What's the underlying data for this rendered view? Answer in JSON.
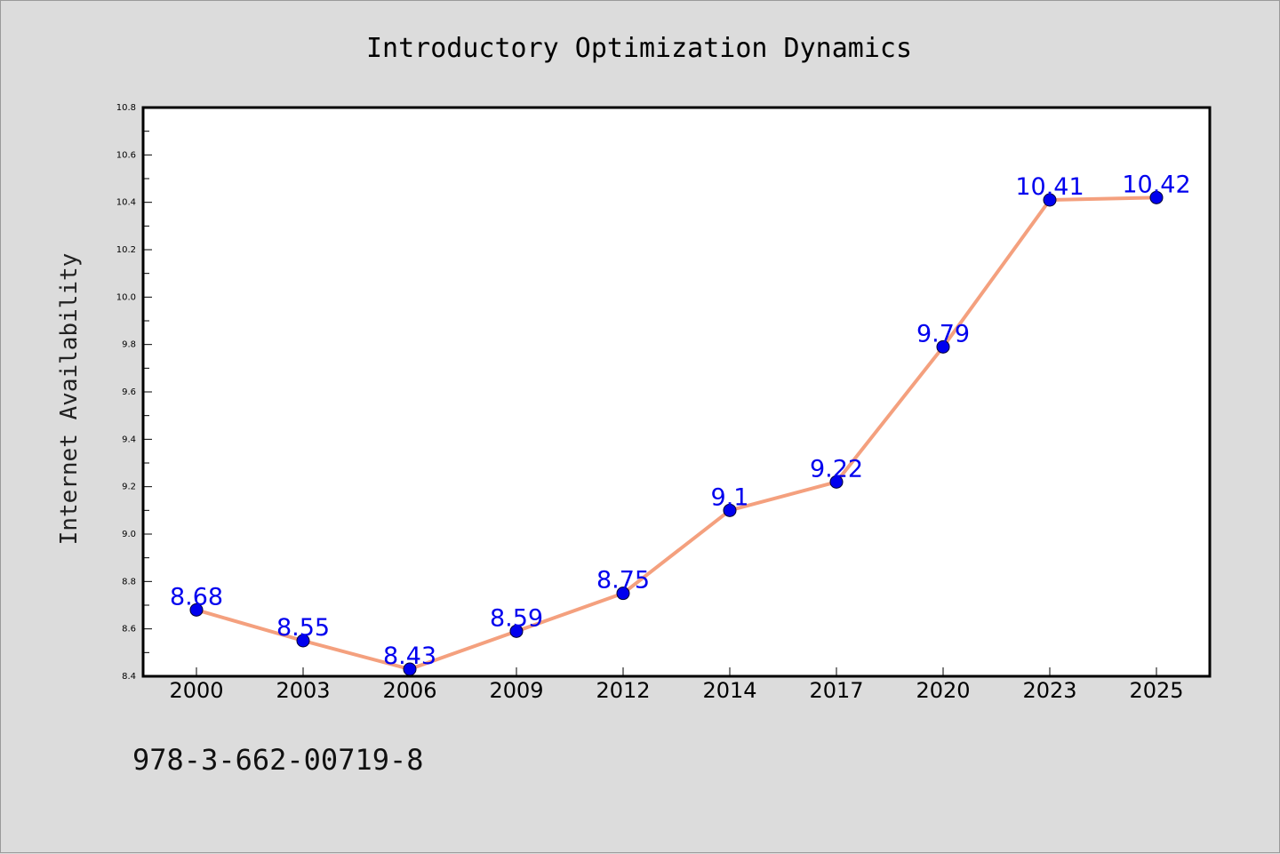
{
  "chart_data": {
    "type": "line",
    "title": "Introductory Optimization Dynamics",
    "xlabel": "",
    "ylabel": "Internet Availability",
    "categories": [
      "2000",
      "2003",
      "2006",
      "2009",
      "2012",
      "2014",
      "2017",
      "2020",
      "2023",
      "2025"
    ],
    "series": [
      {
        "values": [
          8.68,
          8.55,
          8.43,
          8.59,
          8.75,
          9.1,
          9.22,
          9.79,
          10.41,
          10.42
        ],
        "data_labels": [
          "8.68",
          "8.55",
          "8.43",
          "8.59",
          "8.75",
          "9.1",
          "9.22",
          "9.79",
          "10.41",
          "10.42"
        ],
        "line_color": "#f4a07e",
        "marker_color": "#0000ee",
        "label_color": "#0000ee"
      }
    ],
    "ylim": [
      8.4,
      10.8
    ],
    "yticks": [
      "8.4",
      "8.6",
      "8.8",
      "9.0",
      "9.2",
      "9.4",
      "9.6",
      "9.8",
      "10.0",
      "10.2",
      "10.4",
      "10.6",
      "10.8"
    ],
    "grid": false,
    "legend": "none"
  },
  "footer": {
    "text": "978-3-662-00719-8"
  },
  "colors": {
    "background": "#dcdcdc",
    "plot_background": "#ffffff",
    "axes": "#000000"
  }
}
